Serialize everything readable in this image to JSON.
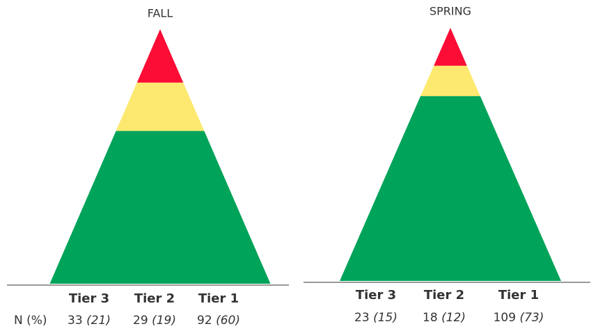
{
  "chart_data": [
    {
      "type": "pyramid",
      "title": "FALL",
      "row_label": "N (%)",
      "categories": [
        "Tier 3",
        "Tier 2",
        "Tier 1"
      ],
      "values": [
        33,
        29,
        92
      ],
      "percents": [
        21,
        19,
        60
      ],
      "percent_labels": [
        "(21)",
        "(19)",
        "(60)"
      ],
      "colors": [
        "#fb0d35",
        "#fde96f",
        "#00a35a"
      ]
    },
    {
      "type": "pyramid",
      "title": "SPRING",
      "categories": [
        "Tier 3",
        "Tier 2",
        "Tier 1"
      ],
      "values": [
        23,
        18,
        109
      ],
      "percents": [
        15,
        12,
        73
      ],
      "percent_labels": [
        "(15)",
        "(12)",
        "(73)"
      ],
      "colors": [
        "#fb0d35",
        "#fde96f",
        "#00a35a"
      ]
    }
  ]
}
